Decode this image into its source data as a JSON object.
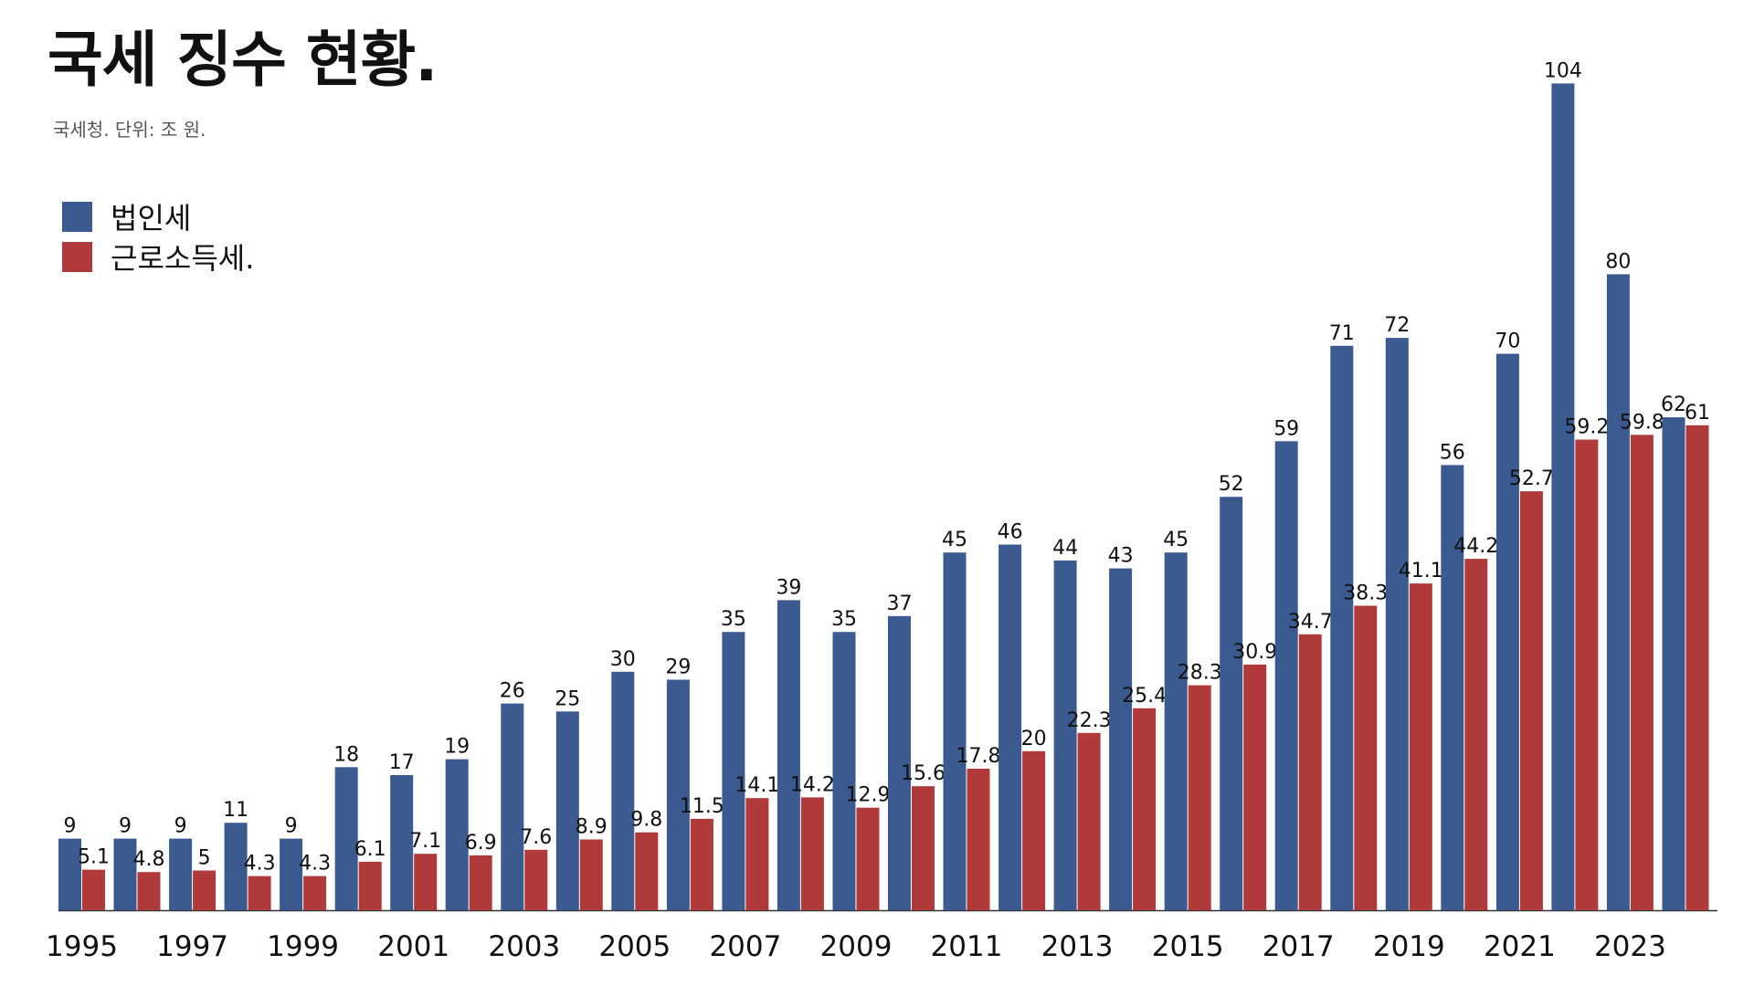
{
  "title": "국세 징수 현황.",
  "subtitle": "국세청. 단위: 조 원.",
  "chart_data": {
    "type": "bar",
    "categories": [
      "1995",
      "1996",
      "1997",
      "1998",
      "1999",
      "2000",
      "2001",
      "2002",
      "2003",
      "2004",
      "2005",
      "2006",
      "2007",
      "2008",
      "2009",
      "2010",
      "2011",
      "2012",
      "2013",
      "2014",
      "2015",
      "2016",
      "2017",
      "2018",
      "2019",
      "2020",
      "2021",
      "2022",
      "2023",
      "2024"
    ],
    "tick_labels": [
      "1995",
      "1997",
      "1999",
      "2001",
      "2003",
      "2005",
      "2007",
      "2009",
      "2011",
      "2013",
      "2015",
      "2017",
      "2019",
      "2021",
      "2023"
    ],
    "series": [
      {
        "name": "법인세",
        "color": "#3b5a8f",
        "values": [
          9,
          9,
          9,
          11,
          9,
          18,
          17,
          19,
          26,
          25,
          30,
          29,
          35,
          39,
          35,
          37,
          45,
          46,
          44,
          43,
          45,
          52,
          59,
          71,
          72,
          56,
          70,
          104,
          80,
          62
        ]
      },
      {
        "name": "근로소득세.",
        "color": "#b03a3a",
        "values": [
          5.1,
          4.8,
          5,
          4.3,
          4.3,
          6.1,
          7.1,
          6.9,
          7.6,
          8.9,
          9.8,
          11.5,
          14.1,
          14.2,
          12.9,
          15.6,
          17.8,
          20,
          22.3,
          25.4,
          28.3,
          30.9,
          34.7,
          38.3,
          41.1,
          44.2,
          52.7,
          59.2,
          59.8,
          61
        ]
      }
    ],
    "ylim": [
      0,
      106
    ],
    "legend_position": "top-left",
    "grid": false
  }
}
